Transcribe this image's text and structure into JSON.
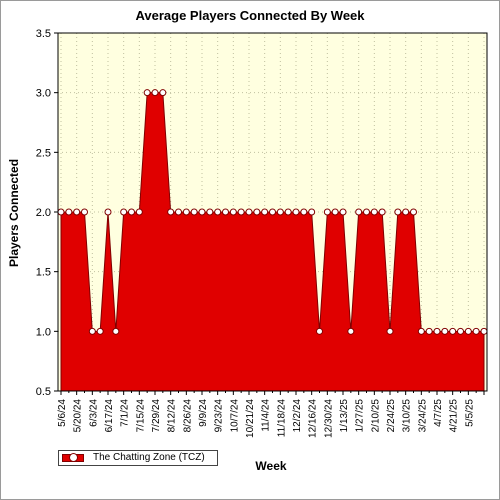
{
  "chart_data": {
    "type": "area",
    "title": "Average Players Connected By Week",
    "xlabel": "Week",
    "ylabel": "Players Connected",
    "ylim": [
      0.5,
      3.5
    ],
    "yticks": [
      "0.5",
      "1.0",
      "1.5",
      "2.0",
      "2.5",
      "3.0",
      "3.5"
    ],
    "xtick_labels": [
      "5/6/24",
      "5/20/24",
      "6/3/24",
      "6/17/24",
      "7/1/24",
      "7/15/24",
      "7/29/24",
      "8/12/24",
      "8/26/24",
      "9/9/24",
      "9/23/24",
      "10/7/24",
      "10/21/24",
      "11/4/24",
      "11/18/24",
      "12/2/24",
      "12/16/24",
      "12/30/24",
      "1/13/25",
      "1/27/25",
      "2/10/25",
      "2/24/25",
      "3/10/25",
      "3/24/25",
      "4/7/25",
      "4/21/25",
      "5/5/25"
    ],
    "grid": true,
    "legend_position": "bottom-left",
    "colors": {
      "area": "#e00000",
      "line": "#800000",
      "plot_bg": "#ffffe0",
      "grid": "#c0c0a0"
    },
    "series": [
      {
        "name": "The Chatting Zone (TCZ)",
        "values": [
          2,
          2,
          2,
          2,
          1,
          1,
          2,
          1,
          2,
          2,
          2,
          3,
          3,
          3,
          2,
          2,
          2,
          2,
          2,
          2,
          2,
          2,
          2,
          2,
          2,
          2,
          2,
          2,
          2,
          2,
          2,
          2,
          2,
          1,
          2,
          2,
          2,
          1,
          2,
          2,
          2,
          2,
          1,
          2,
          2,
          2,
          1,
          1,
          1,
          1,
          1,
          1,
          1,
          1,
          1
        ]
      }
    ]
  }
}
